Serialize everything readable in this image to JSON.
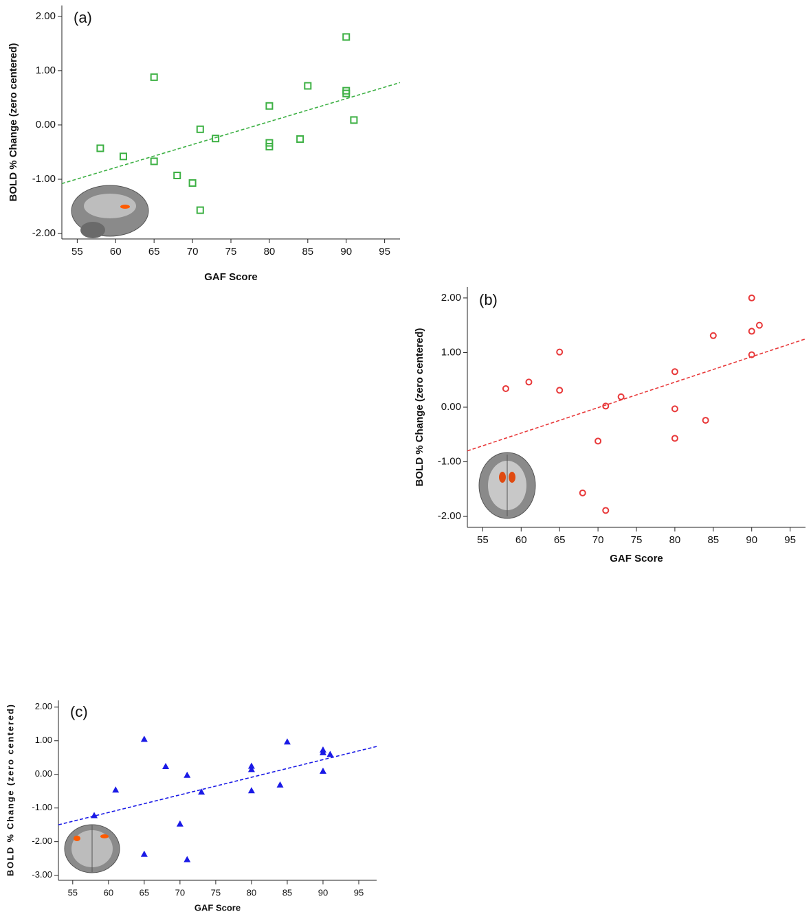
{
  "chart_data": [
    {
      "type": "scatter",
      "label": "(a)",
      "marker": "square",
      "color": "#3cb043",
      "x_label": "GAF Score",
      "y_label": "BOLD % Change (zero centered)",
      "x": [
        58,
        61,
        65,
        65,
        68,
        70,
        71,
        71,
        73,
        80,
        80,
        80,
        84,
        85,
        90,
        90,
        90,
        91
      ],
      "values": [
        -0.43,
        -0.58,
        0.88,
        -0.67,
        -0.93,
        -1.07,
        -0.08,
        -1.57,
        -0.25,
        0.35,
        -0.33,
        -0.4,
        -0.26,
        0.72,
        1.62,
        0.63,
        0.58,
        0.09
      ],
      "trendline": {
        "x": [
          53,
          97
        ],
        "y": [
          -1.08,
          0.78
        ]
      },
      "xlim": [
        53,
        97
      ],
      "ylim": [
        -2.1,
        2.2
      ],
      "xticks": [
        55,
        60,
        65,
        70,
        75,
        80,
        85,
        90,
        95
      ],
      "yticks": [
        {
          "value": -2,
          "label": "-2.00"
        },
        {
          "value": -1,
          "label": "-1.00"
        },
        {
          "value": 0,
          "label": "0.00"
        },
        {
          "value": 1,
          "label": "1.00"
        },
        {
          "value": 2,
          "label": "2.00"
        }
      ]
    },
    {
      "type": "scatter",
      "label": "(b)",
      "marker": "circle",
      "color": "#e8393a",
      "x_label": "GAF Score",
      "y_label": "BOLD % Change (zero centered)",
      "x": [
        58,
        61,
        65,
        65,
        68,
        70,
        71,
        71,
        73,
        80,
        80,
        80,
        84,
        85,
        90,
        90,
        90,
        91
      ],
      "values": [
        0.34,
        0.46,
        1.01,
        0.31,
        -1.57,
        -0.62,
        0.02,
        -1.89,
        0.19,
        0.65,
        -0.03,
        -0.57,
        -0.24,
        1.31,
        2.0,
        1.39,
        0.96,
        1.5
      ],
      "trendline": {
        "x": [
          53,
          97
        ],
        "y": [
          -0.8,
          1.25
        ]
      },
      "xlim": [
        53,
        97
      ],
      "ylim": [
        -2.2,
        2.2
      ],
      "xticks": [
        55,
        60,
        65,
        70,
        75,
        80,
        85,
        90,
        95
      ],
      "yticks": [
        {
          "value": -2,
          "label": "-2.00"
        },
        {
          "value": -1,
          "label": "-1.00"
        },
        {
          "value": 0,
          "label": "0.00"
        },
        {
          "value": 1,
          "label": "1.00"
        },
        {
          "value": 2,
          "label": "2.00"
        }
      ]
    },
    {
      "type": "scatter",
      "label": "(c)",
      "marker": "triangle",
      "color": "#1a1ae6",
      "x_label": "GAF Score",
      "y_label": "BOLD % Change (zero centered)",
      "x": [
        58,
        61,
        65,
        65,
        68,
        70,
        71,
        71,
        73,
        80,
        80,
        80,
        84,
        85,
        90,
        90,
        90,
        91
      ],
      "values": [
        -1.22,
        -0.46,
        1.05,
        -2.37,
        0.24,
        -1.47,
        -0.02,
        -2.53,
        -0.52,
        0.25,
        0.15,
        -0.48,
        -0.31,
        0.97,
        0.73,
        0.65,
        0.1,
        0.6
      ],
      "trendline": {
        "x": [
          53,
          97.5
        ],
        "y": [
          -1.5,
          0.83
        ]
      },
      "xlim": [
        53,
        97.5
      ],
      "ylim": [
        -3.15,
        2.2
      ],
      "xticks": [
        55,
        60,
        65,
        70,
        75,
        80,
        85,
        90,
        95
      ],
      "yticks": [
        {
          "value": -3,
          "label": "-3.00"
        },
        {
          "value": -2,
          "label": "-2.00"
        },
        {
          "value": -1,
          "label": "-1.00"
        },
        {
          "value": 0,
          "label": "0.00"
        },
        {
          "value": 1,
          "label": "1.00"
        },
        {
          "value": 2,
          "label": "2.00"
        }
      ]
    }
  ]
}
